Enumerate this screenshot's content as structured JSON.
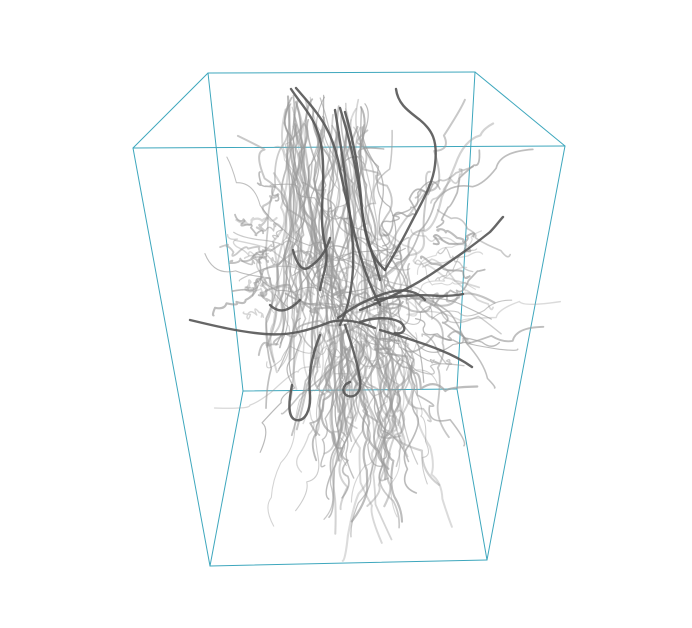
{
  "viewer": {
    "background_color": "#ffffff",
    "box_color": "#3ea7bd",
    "strand_color": "#555555",
    "strand_faint_color": "#9a9a9a"
  }
}
